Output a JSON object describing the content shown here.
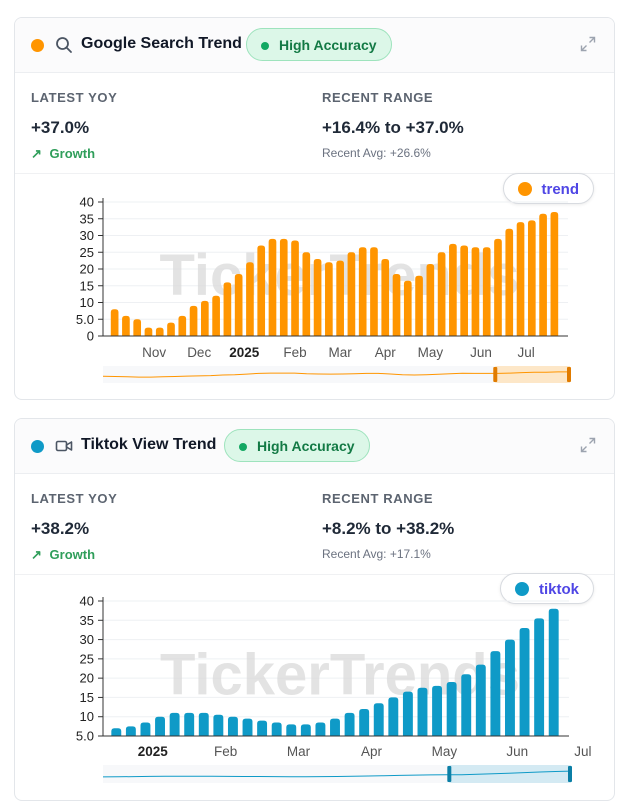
{
  "watermark": "TickerTrends",
  "cards": [
    {
      "title": "Google Search Trend",
      "icon": "search-icon",
      "badge": "High Accuracy",
      "accent": "#ff9500",
      "latest_label": "LATEST YOY",
      "latest_value": "+37.0%",
      "growth": "Growth",
      "range_label": "RECENT RANGE",
      "range_value": "+16.4% to +37.0%",
      "recent_avg": "Recent Avg: +26.6%",
      "legend": "trend",
      "chart_data": {
        "type": "bar",
        "series": [
          {
            "name": "trend",
            "color": "#ff9500",
            "values": [
              8.0,
              6.0,
              5.0,
              2.5,
              2.5,
              4.0,
              6.0,
              9.0,
              10.5,
              12.0,
              16.0,
              18.5,
              22.0,
              27.0,
              29.0,
              29.0,
              28.5,
              25.0,
              23.0,
              22.0,
              22.5,
              25.0,
              26.5,
              26.5,
              23.0,
              18.5,
              16.5,
              18.0,
              21.5,
              25.0,
              27.5,
              27.0,
              26.5,
              26.5,
              29.0,
              32.0,
              34.0,
              34.5,
              36.5,
              37.0
            ]
          }
        ],
        "y_ticks": [
          "0",
          "5.0",
          "10",
          "15",
          "20",
          "25",
          "30",
          "35",
          "40"
        ],
        "ylim": [
          0,
          40
        ],
        "x_labels": [
          {
            "label": "Nov",
            "at": 3.5
          },
          {
            "label": "Dec",
            "at": 7.5
          },
          {
            "label": "2025",
            "at": 11.5,
            "bold": true
          },
          {
            "label": "Feb",
            "at": 16
          },
          {
            "label": "Mar",
            "at": 20
          },
          {
            "label": "Apr",
            "at": 24
          },
          {
            "label": "May",
            "at": 28
          },
          {
            "label": "Jun",
            "at": 32.5
          },
          {
            "label": "Jul",
            "at": 36.5
          }
        ],
        "navigator": {
          "start": 0.84,
          "end": 1.0
        }
      }
    },
    {
      "title": "Tiktok View Trend",
      "icon": "video-camera-icon",
      "badge": "High Accuracy",
      "accent": "#0f9ac7",
      "latest_label": "LATEST YOY",
      "latest_value": "+38.2%",
      "growth": "Growth",
      "range_label": "RECENT RANGE",
      "range_value": "+8.2% to +38.2%",
      "recent_avg": "Recent Avg: +17.1%",
      "legend": "tiktok",
      "chart_data": {
        "type": "bar",
        "series": [
          {
            "name": "tiktok",
            "color": "#0f9ac7",
            "values": [
              7.0,
              7.5,
              8.5,
              10.0,
              11.0,
              11.0,
              11.0,
              10.5,
              10.0,
              9.5,
              9.0,
              8.5,
              8.0,
              8.0,
              8.5,
              9.5,
              11.0,
              12.0,
              13.5,
              15.0,
              16.5,
              17.5,
              18.0,
              19.0,
              21.0,
              23.5,
              27.0,
              30.0,
              33.0,
              35.5,
              38.0
            ]
          }
        ],
        "y_ticks": [
          "5.0",
          "10",
          "15",
          "20",
          "25",
          "30",
          "35",
          "40"
        ],
        "ylim": [
          5,
          40
        ],
        "x_labels": [
          {
            "label": "2025",
            "at": 2.5,
            "bold": true
          },
          {
            "label": "Feb",
            "at": 7.5
          },
          {
            "label": "Mar",
            "at": 12.5
          },
          {
            "label": "Apr",
            "at": 17.5
          },
          {
            "label": "May",
            "at": 22.5
          },
          {
            "label": "Jun",
            "at": 27.5
          },
          {
            "label": "Jul",
            "at": 32.0
          }
        ],
        "navigator": {
          "start": 0.74,
          "end": 1.0
        }
      }
    }
  ]
}
